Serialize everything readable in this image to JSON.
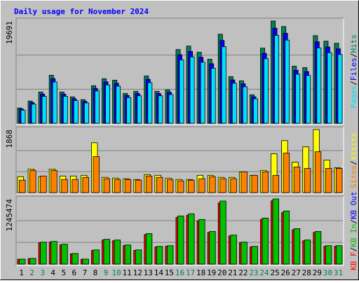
{
  "chart_data": {
    "type": "bar",
    "title": "Daily usage for November 2024",
    "categories": [
      "1",
      "2",
      "3",
      "4",
      "5",
      "6",
      "7",
      "8",
      "9",
      "10",
      "11",
      "12",
      "13",
      "14",
      "15",
      "16",
      "17",
      "18",
      "19",
      "20",
      "21",
      "22",
      "23",
      "24",
      "25",
      "26",
      "27",
      "28",
      "29",
      "30",
      "31"
    ],
    "category_colors": [
      "#000000",
      "#00805c",
      "#00805c",
      "#000000",
      "#000000",
      "#000000",
      "#000000",
      "#000000",
      "#00805c",
      "#00805c",
      "#000000",
      "#000000",
      "#000000",
      "#000000",
      "#000000",
      "#00805c",
      "#00805c",
      "#000000",
      "#000000",
      "#000000",
      "#000000",
      "#000000",
      "#00805c",
      "#00805c",
      "#000000",
      "#000000",
      "#000000",
      "#000000",
      "#000000",
      "#00805c",
      "#00805c"
    ],
    "legend_separator": "/",
    "panels": [
      {
        "ylim": [
          0,
          19691
        ],
        "draw_reversed": true,
        "series": [
          {
            "name": "Pages",
            "color": "#00e0ff",
            "values": [
              2540,
              3690,
              5190,
              7960,
              5190,
              4380,
              3920,
              6230,
              7380,
              7150,
              4950,
              5300,
              7830,
              5300,
              5530,
              12210,
              12790,
              11760,
              10600,
              14750,
              7720,
              7030,
              4720,
              12440,
              16930,
              16020,
              9450,
              9220,
              14520,
              13600,
              13250
            ]
          },
          {
            "name": "Files",
            "color": "#0000ff",
            "values": [
              2740,
              3990,
              5610,
              8600,
              5610,
              4730,
              4240,
              6730,
              7980,
              7730,
              5360,
              5730,
              8470,
              5730,
              5980,
              13210,
              13830,
              12710,
              11470,
              15950,
              8350,
              7600,
              5110,
              13460,
              18310,
              17330,
              10220,
              9970,
              15700,
              14700,
              14330
            ]
          },
          {
            "name": "Hits",
            "color": "#00805c",
            "values": [
              2950,
              4290,
              6030,
              9250,
              6030,
              5090,
              4560,
              7240,
              8580,
              8310,
              5760,
              6160,
              9110,
              6160,
              6430,
              14200,
              14870,
              13670,
              12330,
              17150,
              8980,
              8170,
              5490,
              14470,
              19691,
              18630,
              10990,
              10720,
              16880,
              15810,
              15410
            ]
          }
        ]
      },
      {
        "ylim": [
          0,
          1868
        ],
        "draw_reversed": true,
        "series": [
          {
            "name": "Sites",
            "color": "#ff8000",
            "values": [
              370,
              657,
              493,
              657,
              390,
              390,
              452,
              1068,
              411,
              390,
              390,
              370,
              493,
              452,
              390,
              349,
              370,
              411,
              472,
              411,
              411,
              616,
              513,
              616,
              513,
              1170,
              760,
              719,
              1211,
              719,
              719
            ]
          },
          {
            "name": "Visits",
            "color": "#ffff00",
            "values": [
              472,
              698,
              472,
              698,
              493,
              493,
              513,
              1478,
              452,
              431,
              411,
              390,
              534,
              513,
              431,
              390,
              390,
              513,
              513,
              452,
              452,
              616,
              513,
              657,
              1150,
              1540,
              903,
              1355,
              1868,
              965,
              739
            ]
          }
        ]
      },
      {
        "ylim": [
          0,
          1245474
        ],
        "draw_reversed": false,
        "series": [
          {
            "name": "KB F",
            "color": "#ff0000",
            "values": [
              91900,
              105000,
              407100,
              420200,
              367700,
              197000,
              91900,
              262600,
              459600,
              446500,
              354600,
              262600,
              564700,
              328300,
              341400,
              893000,
              932400,
              827300,
              604100,
              1168700,
              538400,
              407100,
              328300,
              853600,
              1208100,
              984900,
              656600,
              446500,
              604100,
              341400,
              341400
            ]
          },
          {
            "name": "KB In",
            "color": "#00c000",
            "values": [
              94770,
              108300,
              419680,
              433220,
              379070,
              203070,
              94770,
              270760,
              473830,
              460290,
              365530,
              270760,
              582130,
              338450,
              351990,
              920580,
              961200,
              852890,
              622750,
              1204880,
              555060,
              419680,
              338450,
              879970,
              1245474,
              1015350,
              676900,
              460290,
              622750,
              351990,
              351990
            ]
          },
          {
            "name": "KB Out",
            "color": "#0000ff"
          }
        ]
      }
    ]
  }
}
